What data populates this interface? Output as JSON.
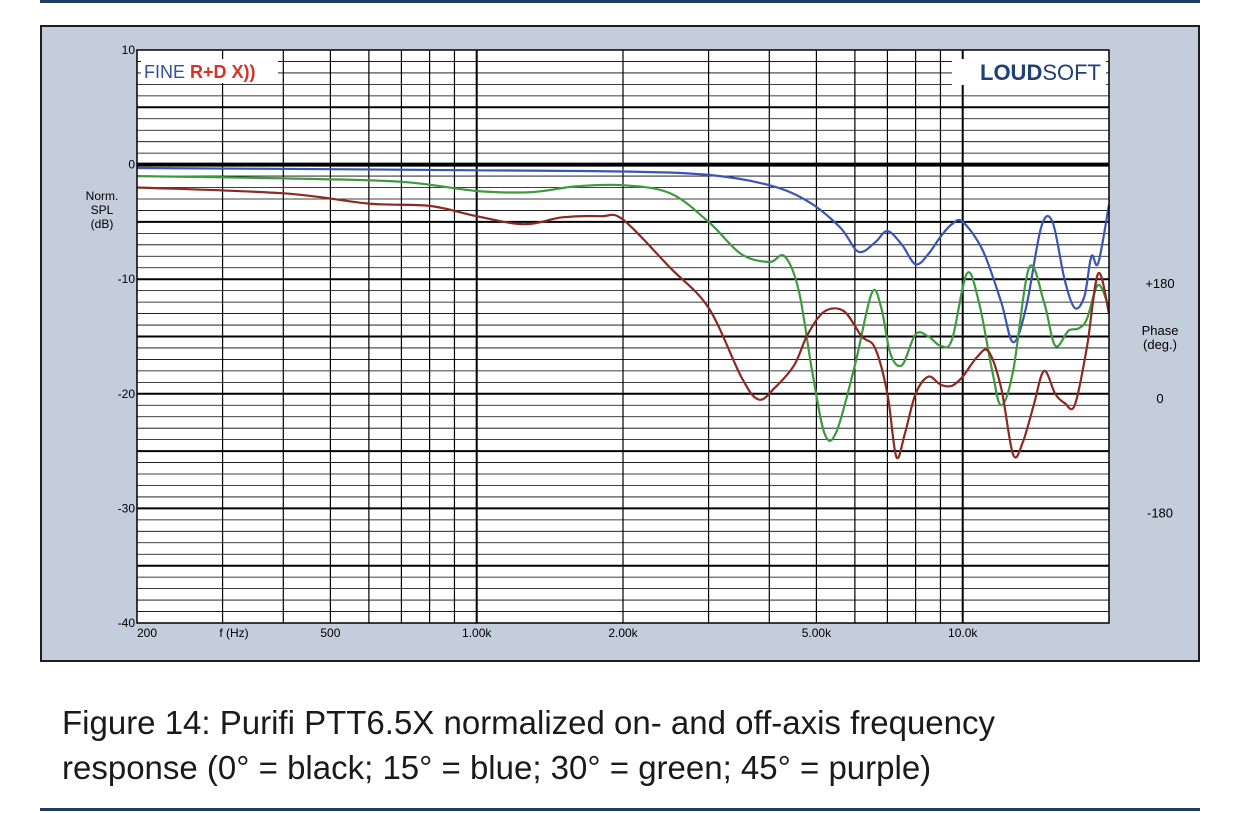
{
  "chart_data": {
    "type": "line",
    "title": "",
    "xlabel": "f (Hz)",
    "ylabel": [
      "Norm.",
      "SPL",
      "(dB)"
    ],
    "y2label": [
      "Phase",
      "(deg.)"
    ],
    "x_scale": "log",
    "xlim": [
      200,
      20000
    ],
    "ylim": [
      -40,
      10
    ],
    "grid": true,
    "x_tick_labels": [
      {
        "value": 200,
        "label": "200"
      },
      {
        "value": 500,
        "label": "500"
      },
      {
        "value": 1000,
        "label": "1.00k"
      },
      {
        "value": 2000,
        "label": "2.00k"
      },
      {
        "value": 5000,
        "label": "5.00k"
      },
      {
        "value": 10000,
        "label": "10.0k"
      }
    ],
    "y_tick_labels": [
      {
        "value": 10,
        "label": "10"
      },
      {
        "value": 0,
        "label": "0"
      },
      {
        "value": -10,
        "label": "-10"
      },
      {
        "value": -20,
        "label": "-20"
      },
      {
        "value": -30,
        "label": "-30"
      },
      {
        "value": -40,
        "label": "-40"
      }
    ],
    "y2_tick_labels": [
      {
        "value": -10,
        "label": "+180"
      },
      {
        "value": -20,
        "label": "0"
      },
      {
        "value": -30,
        "label": "-180"
      }
    ],
    "series": [
      {
        "color": "#111111",
        "points": [
          [
            200,
            0
          ],
          [
            20000,
            0
          ]
        ]
      },
      {
        "color": "#3a55b5",
        "points": [
          [
            200,
            -0.3
          ],
          [
            500,
            -0.4
          ],
          [
            1000,
            -0.5
          ],
          [
            2000,
            -0.6
          ],
          [
            3000,
            -0.9
          ],
          [
            4000,
            -1.8
          ],
          [
            4800,
            -3.2
          ],
          [
            5600,
            -5.5
          ],
          [
            6100,
            -7.6
          ],
          [
            6600,
            -6.8
          ],
          [
            7000,
            -5.8
          ],
          [
            7500,
            -7.0
          ],
          [
            8000,
            -8.7
          ],
          [
            8500,
            -7.8
          ],
          [
            9000,
            -6.3
          ],
          [
            9500,
            -5.2
          ],
          [
            10000,
            -5.0
          ],
          [
            11000,
            -7.5
          ],
          [
            12000,
            -12.0
          ],
          [
            12700,
            -15.5
          ],
          [
            13500,
            -12.5
          ],
          [
            14500,
            -5.5
          ],
          [
            15300,
            -5.0
          ],
          [
            16200,
            -10.0
          ],
          [
            17000,
            -12.5
          ],
          [
            17800,
            -11.5
          ],
          [
            18400,
            -8.0
          ],
          [
            19000,
            -8.6
          ],
          [
            20000,
            -3.5
          ]
        ]
      },
      {
        "color": "#3f9a3f",
        "points": [
          [
            200,
            -1.0
          ],
          [
            400,
            -1.2
          ],
          [
            700,
            -1.5
          ],
          [
            1000,
            -2.3
          ],
          [
            1300,
            -2.4
          ],
          [
            1600,
            -1.9
          ],
          [
            2000,
            -1.8
          ],
          [
            2500,
            -2.5
          ],
          [
            3000,
            -5.0
          ],
          [
            3500,
            -7.8
          ],
          [
            4000,
            -8.5
          ],
          [
            4300,
            -8.0
          ],
          [
            4600,
            -11.0
          ],
          [
            4900,
            -18.0
          ],
          [
            5200,
            -23.5
          ],
          [
            5500,
            -23.3
          ],
          [
            6000,
            -17.5
          ],
          [
            6500,
            -11.2
          ],
          [
            6800,
            -12.5
          ],
          [
            7100,
            -16.5
          ],
          [
            7500,
            -17.5
          ],
          [
            8000,
            -14.8
          ],
          [
            8500,
            -15.0
          ],
          [
            9000,
            -15.8
          ],
          [
            9500,
            -15.3
          ],
          [
            10200,
            -9.5
          ],
          [
            10800,
            -12.0
          ],
          [
            11500,
            -18.0
          ],
          [
            12000,
            -21.0
          ],
          [
            12700,
            -18.0
          ],
          [
            13700,
            -9.0
          ],
          [
            14700,
            -12.0
          ],
          [
            15500,
            -15.8
          ],
          [
            16500,
            -14.5
          ],
          [
            17300,
            -14.3
          ],
          [
            18000,
            -13.5
          ],
          [
            19000,
            -10.5
          ],
          [
            20000,
            -12.5
          ]
        ]
      },
      {
        "color": "#8b2a22",
        "points": [
          [
            200,
            -2.0
          ],
          [
            400,
            -2.5
          ],
          [
            600,
            -3.4
          ],
          [
            800,
            -3.6
          ],
          [
            1000,
            -4.5
          ],
          [
            1250,
            -5.2
          ],
          [
            1500,
            -4.6
          ],
          [
            1800,
            -4.5
          ],
          [
            2000,
            -4.8
          ],
          [
            2500,
            -9.0
          ],
          [
            3000,
            -12.5
          ],
          [
            3500,
            -18.5
          ],
          [
            3800,
            -20.5
          ],
          [
            4100,
            -19.5
          ],
          [
            4500,
            -17.5
          ],
          [
            4800,
            -14.8
          ],
          [
            5200,
            -12.8
          ],
          [
            5700,
            -12.8
          ],
          [
            6200,
            -15.0
          ],
          [
            6600,
            -16.0
          ],
          [
            7000,
            -20.0
          ],
          [
            7300,
            -25.5
          ],
          [
            7600,
            -23.5
          ],
          [
            8000,
            -20.0
          ],
          [
            8500,
            -18.5
          ],
          [
            9000,
            -19.2
          ],
          [
            9500,
            -19.3
          ],
          [
            10000,
            -18.5
          ],
          [
            10700,
            -16.8
          ],
          [
            11300,
            -16.3
          ],
          [
            12000,
            -19.5
          ],
          [
            12700,
            -25.3
          ],
          [
            13300,
            -24.2
          ],
          [
            14000,
            -21.0
          ],
          [
            14700,
            -18.0
          ],
          [
            15500,
            -20.0
          ],
          [
            16200,
            -20.8
          ],
          [
            17000,
            -21.0
          ],
          [
            18000,
            -16.0
          ],
          [
            19000,
            -9.5
          ],
          [
            20000,
            -13.0
          ]
        ]
      }
    ]
  },
  "logos": {
    "fine_prefix": "FINE ",
    "fine_suffix": "R+D X))",
    "loudsoft_bold": "LOUD",
    "loudsoft_light": "SOFT"
  },
  "caption": {
    "line1": "Figure 14: Purifi PTT6.5X normalized on- and off-axis frequency",
    "line2": "response (0° = black; 15° = blue; 30° = green; 45° = purple)"
  }
}
